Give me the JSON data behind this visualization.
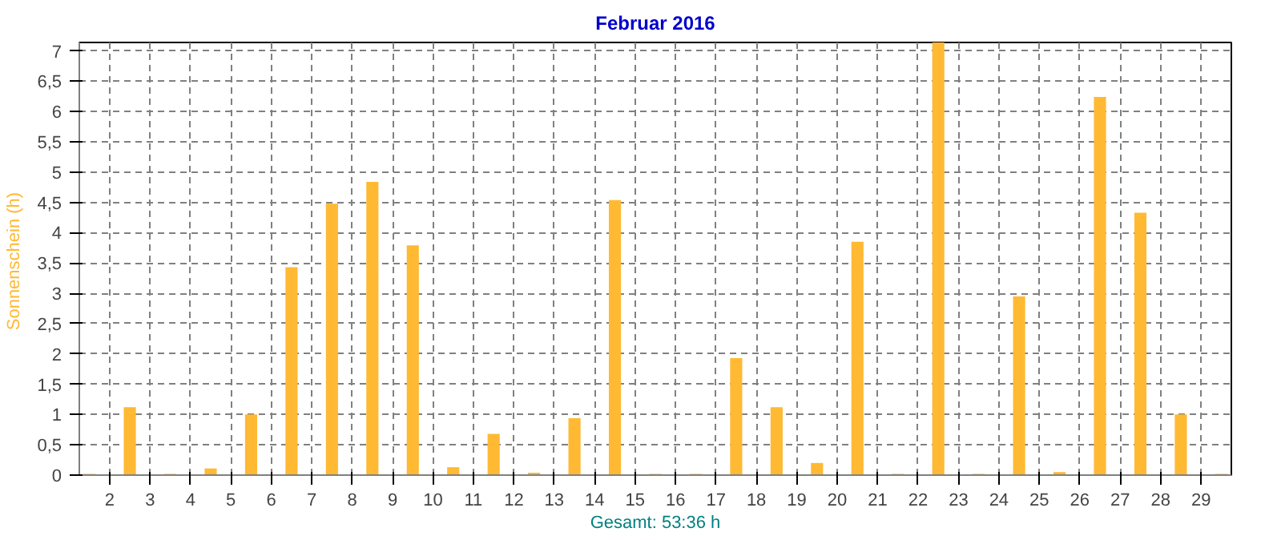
{
  "chart_data": {
    "type": "bar",
    "title": "Februar 2016",
    "ylabel": "Sonnenschein  (h)",
    "xlabel": "Gesamt: 53:36 h",
    "x": [
      1.5,
      2.5,
      3.5,
      4.5,
      5.5,
      6.5,
      7.5,
      8.5,
      9.5,
      10.5,
      11.5,
      12.5,
      13.5,
      14.5,
      15.5,
      16.5,
      17.5,
      18.5,
      19.5,
      20.5,
      21.5,
      22.5,
      23.5,
      24.5,
      25.5,
      26.5,
      27.5,
      28.5,
      29.5
    ],
    "values": [
      0.02,
      1.12,
      0.02,
      0.11,
      1.0,
      3.43,
      4.48,
      4.84,
      3.79,
      0.13,
      0.68,
      0.04,
      0.94,
      4.54,
      0.02,
      0.02,
      1.93,
      1.12,
      0.2,
      3.85,
      0.02,
      7.14,
      0.02,
      2.95,
      0.05,
      6.24,
      4.33,
      1.0,
      0.02
    ],
    "color": "#ffb933",
    "xlim": [
      1.25,
      29.75
    ],
    "xticks": [
      2,
      3,
      4,
      5,
      6,
      7,
      8,
      9,
      10,
      11,
      12,
      13,
      14,
      15,
      16,
      17,
      18,
      19,
      20,
      21,
      22,
      23,
      24,
      25,
      26,
      27,
      28,
      29
    ],
    "ylim": [
      0,
      7.14
    ],
    "yticks": [
      0,
      {
        "value": 0.5,
        "label": "0,5"
      },
      1,
      {
        "value": 1.5,
        "label": "1,5"
      },
      2,
      {
        "value": 2.5,
        "label": "2,5"
      },
      3,
      {
        "value": 3.5,
        "label": "3,5"
      },
      4,
      {
        "value": 4.5,
        "label": "4,5"
      },
      5,
      {
        "value": 5.5,
        "label": "5,5"
      },
      6,
      {
        "value": 6.5,
        "label": "6,5"
      },
      7
    ],
    "grid": true
  }
}
